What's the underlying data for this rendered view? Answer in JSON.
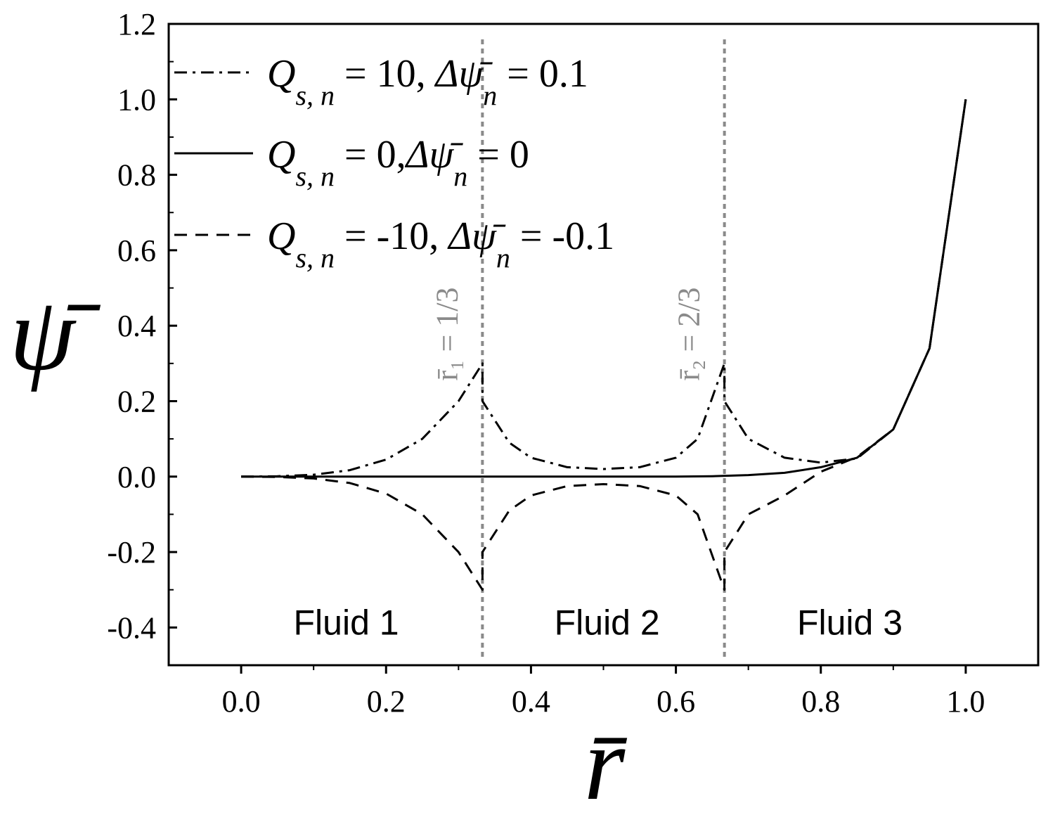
{
  "chart_data": {
    "type": "line",
    "xlabel": "r̄",
    "ylabel": "ψ̄",
    "xlim": [
      -0.1,
      1.1
    ],
    "ylim": [
      -0.5,
      1.2
    ],
    "xticks": [
      "0.0",
      "0.2",
      "0.4",
      "0.6",
      "0.8",
      "1.0"
    ],
    "yticks": [
      "-0.4",
      "-0.2",
      "0.0",
      "0.2",
      "0.4",
      "0.6",
      "0.8",
      "1.0",
      "1.2"
    ],
    "xtick_values": [
      0.0,
      0.2,
      0.4,
      0.6,
      0.8,
      1.0
    ],
    "ytick_values": [
      -0.4,
      -0.2,
      0.0,
      0.2,
      0.4,
      0.6,
      0.8,
      1.0,
      1.2
    ],
    "grid": false,
    "legend_position": "top-left",
    "series": [
      {
        "name": "Q_{s,n} = 10, Δψ̄_n = 0.1",
        "style": "dashdot",
        "legend": {
          "q_var": "Q",
          "q_sub": "s, n",
          "q_val": " = 10, ",
          "d_var": "Δψ̄",
          "d_sub": "n",
          "d_val": " = 0.1"
        },
        "x": [
          0.0,
          0.05,
          0.1,
          0.15,
          0.2,
          0.25,
          0.3,
          0.333,
          0.333,
          0.37,
          0.4,
          0.45,
          0.5,
          0.55,
          0.6,
          0.63,
          0.667,
          0.667,
          0.7,
          0.75,
          0.8,
          0.85,
          0.9,
          0.95,
          1.0
        ],
        "y": [
          0.0,
          0.001,
          0.005,
          0.017,
          0.045,
          0.1,
          0.2,
          0.3,
          0.2,
          0.09,
          0.05,
          0.025,
          0.02,
          0.025,
          0.05,
          0.1,
          0.3,
          0.2,
          0.1,
          0.05,
          0.037,
          0.048,
          0.125,
          0.34,
          1.0
        ]
      },
      {
        "name": "Q_{s,n} = 0, Δψ̄_n = 0",
        "style": "solid",
        "legend": {
          "q_var": "Q",
          "q_sub": "s, n",
          "q_val": " = 0,",
          "d_var": "Δψ̄",
          "d_sub": "n",
          "d_val": " = 0"
        },
        "x": [
          0.0,
          0.1,
          0.2,
          0.3,
          0.4,
          0.5,
          0.6,
          0.65,
          0.7,
          0.75,
          0.8,
          0.85,
          0.9,
          0.95,
          1.0
        ],
        "y": [
          0.0,
          0.0,
          0.0,
          0.0,
          0.0,
          0.0,
          0.0,
          0.001,
          0.004,
          0.01,
          0.025,
          0.05,
          0.125,
          0.34,
          1.0
        ]
      },
      {
        "name": "Q_{s,n} = -10, Δψ̄_n = -0.1",
        "style": "dashed",
        "legend": {
          "q_var": "Q",
          "q_sub": "s, n",
          "q_val": " = -10, ",
          "d_var": "Δψ̄",
          "d_sub": "n",
          "d_val": " = -0.1"
        },
        "x": [
          0.0,
          0.05,
          0.1,
          0.15,
          0.2,
          0.25,
          0.3,
          0.333,
          0.333,
          0.37,
          0.4,
          0.45,
          0.5,
          0.55,
          0.6,
          0.63,
          0.667,
          0.667,
          0.7,
          0.75,
          0.8,
          0.85,
          0.9,
          0.95,
          1.0
        ],
        "y": [
          0.0,
          -0.001,
          -0.005,
          -0.017,
          -0.045,
          -0.1,
          -0.2,
          -0.3,
          -0.2,
          -0.09,
          -0.05,
          -0.025,
          -0.02,
          -0.025,
          -0.05,
          -0.1,
          -0.3,
          -0.2,
          -0.1,
          -0.05,
          0.013,
          0.052,
          0.125,
          0.34,
          1.0
        ]
      }
    ],
    "interfaces": [
      {
        "x": 0.333,
        "label": "r̄₁ = 1/3"
      },
      {
        "x": 0.667,
        "label": "r̄₂ = 2/3"
      }
    ],
    "regions": [
      {
        "x": 0.145,
        "y": -0.385,
        "label": "Fluid 1"
      },
      {
        "x": 0.505,
        "y": -0.385,
        "label": "Fluid 2"
      },
      {
        "x": 0.84,
        "y": -0.385,
        "label": "Fluid 3"
      }
    ]
  }
}
